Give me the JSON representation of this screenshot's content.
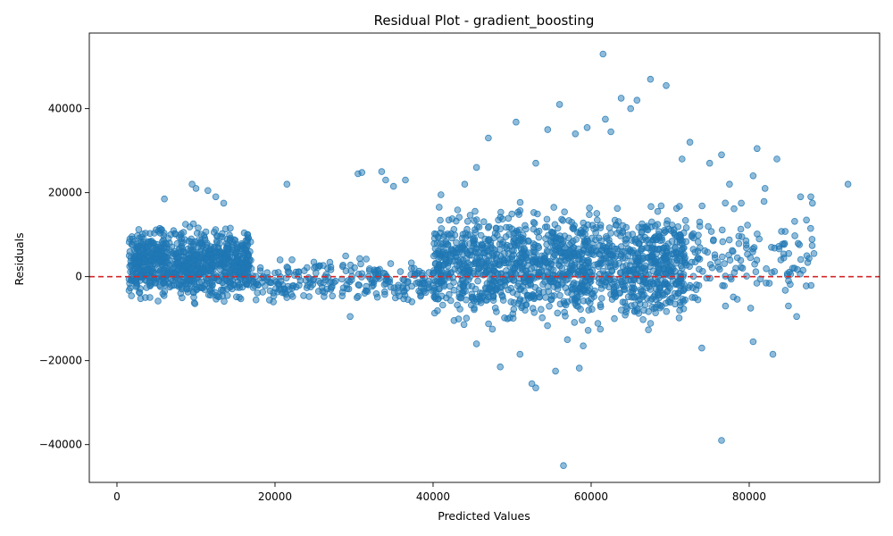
{
  "chart_data": {
    "type": "scatter",
    "title": "Residual Plot - gradient_boosting",
    "xlabel": "Predicted Values",
    "ylabel": "Residuals",
    "xlim": [
      -3500,
      96500
    ],
    "ylim": [
      -49000,
      58000
    ],
    "xticks": [
      0,
      20000,
      40000,
      60000,
      80000
    ],
    "yticks": [
      -40000,
      -20000,
      0,
      20000,
      40000
    ],
    "xtick_labels": [
      "0",
      "20000",
      "40000",
      "60000",
      "80000"
    ],
    "ytick_labels": [
      "−40000",
      "−20000",
      "0",
      "20000",
      "40000"
    ],
    "reference_line": {
      "y": 0,
      "color": "#d62728",
      "style": "dashed"
    },
    "grid": false,
    "point_color": "#1f77b4",
    "clusters": [
      {
        "x_range": [
          1500,
          17000
        ],
        "y_range": [
          -8000,
          14000
        ],
        "count": 900
      },
      {
        "x_range": [
          17000,
          40000
        ],
        "y_range": [
          -8000,
          6000
        ],
        "count": 250
      },
      {
        "x_range": [
          40000,
          72000
        ],
        "y_range": [
          -15000,
          20000
        ],
        "count": 1400
      },
      {
        "x_range": [
          66000,
          88000
        ],
        "y_range": [
          -12000,
          20000
        ],
        "count": 200
      }
    ],
    "points": [
      [
        9500,
        22000
      ],
      [
        10000,
        21000
      ],
      [
        11500,
        20500
      ],
      [
        12500,
        19000
      ],
      [
        6000,
        18500
      ],
      [
        13500,
        17500
      ],
      [
        21500,
        22000
      ],
      [
        29500,
        -9500
      ],
      [
        30500,
        24500
      ],
      [
        31000,
        24800
      ],
      [
        33500,
        25000
      ],
      [
        34000,
        23000
      ],
      [
        35000,
        21500
      ],
      [
        36500,
        23000
      ],
      [
        41000,
        19500
      ],
      [
        44000,
        22000
      ],
      [
        45500,
        26000
      ],
      [
        47000,
        33000
      ],
      [
        50500,
        36800
      ],
      [
        53000,
        27000
      ],
      [
        54500,
        35000
      ],
      [
        56000,
        41000
      ],
      [
        58000,
        34000
      ],
      [
        59500,
        35500
      ],
      [
        61500,
        53000
      ],
      [
        61800,
        37500
      ],
      [
        62500,
        34500
      ],
      [
        63800,
        42500
      ],
      [
        65000,
        40000
      ],
      [
        65800,
        42000
      ],
      [
        67500,
        47000
      ],
      [
        69500,
        45500
      ],
      [
        71500,
        28000
      ],
      [
        72500,
        32000
      ],
      [
        75000,
        27000
      ],
      [
        76500,
        29000
      ],
      [
        77500,
        22000
      ],
      [
        79000,
        17500
      ],
      [
        80500,
        24000
      ],
      [
        81000,
        30500
      ],
      [
        82000,
        21000
      ],
      [
        83500,
        28000
      ],
      [
        85000,
        5500
      ],
      [
        86500,
        19000
      ],
      [
        88000,
        17500
      ],
      [
        88200,
        5500
      ],
      [
        92500,
        22000
      ],
      [
        86000,
        -9500
      ],
      [
        83000,
        -18500
      ],
      [
        80500,
        -15500
      ],
      [
        76500,
        -39000
      ],
      [
        56500,
        -45000
      ],
      [
        53000,
        -26500
      ],
      [
        52500,
        -25500
      ],
      [
        48500,
        -21500
      ],
      [
        55500,
        -22500
      ],
      [
        58500,
        -21800
      ],
      [
        59000,
        -16500
      ],
      [
        74000,
        -17000
      ],
      [
        45500,
        -16000
      ],
      [
        47500,
        -12500
      ],
      [
        51000,
        -18500
      ],
      [
        57000,
        -15000
      ],
      [
        84000,
        4000
      ],
      [
        86800,
        1500
      ],
      [
        85500,
        2000
      ],
      [
        87800,
        19000
      ],
      [
        77000,
        -7000
      ],
      [
        78500,
        4500
      ]
    ]
  }
}
